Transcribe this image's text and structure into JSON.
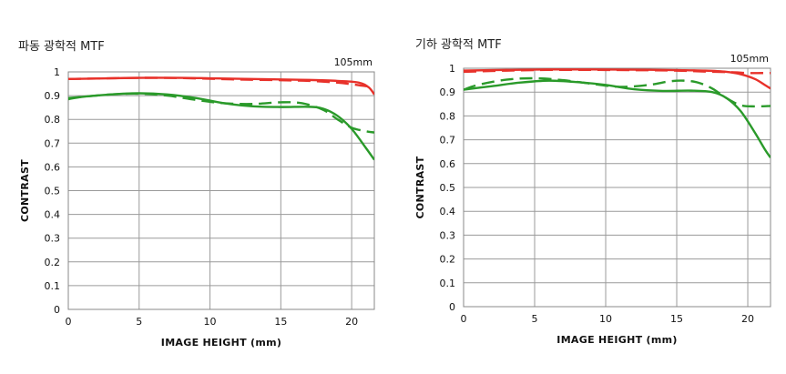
{
  "chart_data": [
    {
      "type": "line",
      "title": "파동 광학적 MTF",
      "focal_label": "105mm",
      "xlabel": "IMAGE HEIGHT (mm)",
      "ylabel": "CONTRAST",
      "xlim": [
        0,
        21.6
      ],
      "ylim": [
        0,
        1
      ],
      "x_ticks": [
        "0",
        "5",
        "10",
        "15",
        "20"
      ],
      "y_ticks": [
        "0",
        "0.1",
        "0.2",
        "0.3",
        "0.4",
        "0.5",
        "0.6",
        "0.7",
        "0.8",
        "0.9",
        "1"
      ],
      "grid": true,
      "colors": {
        "red": "#e8312a",
        "green": "#2a9a2a"
      },
      "series": [
        {
          "color": "red",
          "dash": "solid",
          "x": [
            0,
            2,
            5,
            8,
            10,
            12,
            15,
            17,
            19,
            20.5,
            21.2,
            21.6
          ],
          "y": [
            0.97,
            0.972,
            0.975,
            0.975,
            0.973,
            0.971,
            0.968,
            0.966,
            0.962,
            0.955,
            0.935,
            0.905
          ]
        },
        {
          "color": "red",
          "dash": "dashed",
          "x": [
            0,
            2,
            5,
            8,
            10,
            12,
            15,
            17,
            19,
            20,
            21,
            21.6
          ],
          "y": [
            0.97,
            0.972,
            0.975,
            0.974,
            0.971,
            0.968,
            0.965,
            0.962,
            0.955,
            0.948,
            0.94,
            0.94
          ]
        },
        {
          "color": "green",
          "dash": "solid",
          "x": [
            0,
            1,
            3,
            5,
            7,
            9,
            11,
            13,
            15,
            17,
            18,
            19,
            20,
            21,
            21.6
          ],
          "y": [
            0.885,
            0.895,
            0.905,
            0.91,
            0.905,
            0.89,
            0.868,
            0.855,
            0.852,
            0.853,
            0.845,
            0.815,
            0.76,
            0.68,
            0.63
          ]
        },
        {
          "color": "green",
          "dash": "dashed",
          "x": [
            0,
            1,
            3,
            5,
            7,
            9,
            11,
            13,
            15,
            16.5,
            18,
            19,
            20,
            21,
            21.6
          ],
          "y": [
            0.89,
            0.895,
            0.905,
            0.908,
            0.9,
            0.882,
            0.868,
            0.865,
            0.872,
            0.868,
            0.84,
            0.8,
            0.765,
            0.75,
            0.745
          ]
        }
      ]
    },
    {
      "type": "line",
      "title": "기하 광학적 MTF",
      "focal_label": "105mm",
      "xlabel": "IMAGE HEIGHT (mm)",
      "ylabel": "CONTRAST",
      "xlim": [
        0,
        21.6
      ],
      "ylim": [
        0,
        1
      ],
      "x_ticks": [
        "0",
        "5",
        "10",
        "15",
        "20"
      ],
      "y_ticks": [
        "0",
        "0.1",
        "0.2",
        "0.3",
        "0.4",
        "0.5",
        "0.6",
        "0.7",
        "0.8",
        "0.9",
        "1"
      ],
      "grid": true,
      "colors": {
        "red": "#e8312a",
        "green": "#2a9a2a"
      },
      "series": [
        {
          "color": "red",
          "dash": "solid",
          "x": [
            0,
            3,
            6,
            9,
            12,
            15,
            17,
            18.5,
            19.5,
            20.5,
            21.2,
            21.6
          ],
          "y": [
            0.99,
            0.993,
            0.995,
            0.995,
            0.994,
            0.992,
            0.99,
            0.985,
            0.975,
            0.955,
            0.93,
            0.915
          ]
        },
        {
          "color": "red",
          "dash": "dashed",
          "x": [
            0,
            3,
            6,
            9,
            12,
            15,
            17,
            19,
            20,
            21,
            21.6
          ],
          "y": [
            0.985,
            0.99,
            0.993,
            0.993,
            0.992,
            0.99,
            0.986,
            0.983,
            0.98,
            0.98,
            0.98
          ]
        },
        {
          "color": "green",
          "dash": "solid",
          "x": [
            0,
            2,
            4,
            6,
            8,
            10,
            12,
            14,
            16,
            17.5,
            18.5,
            19.5,
            20.5,
            21.2,
            21.6
          ],
          "y": [
            0.91,
            0.925,
            0.94,
            0.948,
            0.942,
            0.93,
            0.912,
            0.905,
            0.906,
            0.9,
            0.875,
            0.82,
            0.73,
            0.66,
            0.625
          ]
        },
        {
          "color": "green",
          "dash": "dashed",
          "x": [
            0,
            1,
            3,
            5,
            7,
            9,
            11,
            13,
            14.5,
            15.5,
            16.5,
            17.5,
            18.5,
            19.5,
            20.5,
            21.6
          ],
          "y": [
            0.91,
            0.93,
            0.952,
            0.958,
            0.95,
            0.935,
            0.922,
            0.93,
            0.945,
            0.948,
            0.94,
            0.915,
            0.875,
            0.845,
            0.84,
            0.842
          ]
        }
      ]
    }
  ]
}
